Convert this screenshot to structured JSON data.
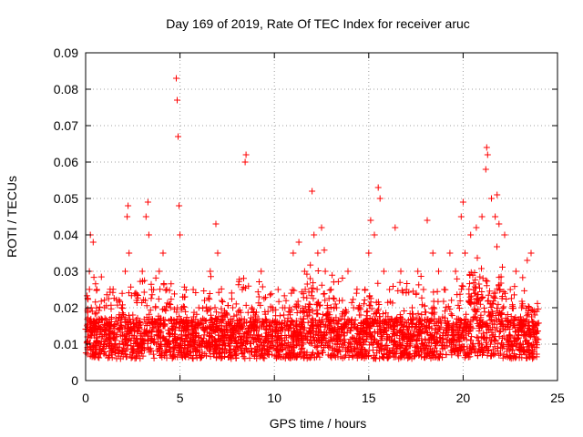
{
  "chart_data": {
    "type": "scatter",
    "title": "Day 169 of 2019, Rate Of TEC Index for receiver aruc",
    "xlabel": "GPS time / hours",
    "ylabel": "ROTI / TECUs",
    "xlim": [
      0,
      25
    ],
    "ylim": [
      0,
      0.09
    ],
    "x_ticks": [
      "0",
      "5",
      "10",
      "15",
      "20",
      "25"
    ],
    "y_ticks": [
      "0",
      "0.01",
      "0.02",
      "0.03",
      "0.04",
      "0.05",
      "0.06",
      "0.07",
      "0.08",
      "0.09"
    ],
    "grid": true,
    "marker": "+",
    "color": "#ff0000",
    "series": [
      {
        "x": [
          0.1,
          0.2,
          0.25,
          0.3,
          0.4,
          0.5,
          0.6,
          0.8,
          1.0,
          1.3,
          1.6,
          1.9,
          2.1,
          2.2,
          2.25,
          2.3,
          2.5,
          2.7,
          3.0,
          3.2,
          3.3,
          3.35,
          3.5,
          3.7,
          3.9,
          4.1,
          4.3,
          4.5,
          4.8,
          4.85,
          4.9,
          4.95,
          5.0,
          5.1,
          5.4,
          5.7,
          6.0,
          6.3,
          6.6,
          6.9,
          7.0,
          7.2,
          7.5,
          7.8,
          8.0,
          8.3,
          8.45,
          8.5,
          8.8,
          9.0,
          9.3,
          9.6,
          9.9,
          10.2,
          10.5,
          10.8,
          11.0,
          11.3,
          11.6,
          11.9,
          12.0,
          12.1,
          12.3,
          12.5,
          12.7,
          13.0,
          13.3,
          13.6,
          13.9,
          14.2,
          14.5,
          14.8,
          15.0,
          15.1,
          15.3,
          15.5,
          15.6,
          15.8,
          16.1,
          16.4,
          16.7,
          17.0,
          17.3,
          17.6,
          17.9,
          18.1,
          18.4,
          18.7,
          19.0,
          19.3,
          19.6,
          19.9,
          20.0,
          20.1,
          20.4,
          20.7,
          21.0,
          21.2,
          21.25,
          21.3,
          21.5,
          21.7,
          21.8,
          21.9,
          22.2,
          22.5,
          22.8,
          23.1,
          23.4,
          23.6,
          23.8
        ],
        "y": [
          0.012,
          0.03,
          0.04,
          0.02,
          0.038,
          0.015,
          0.025,
          0.01,
          0.02,
          0.015,
          0.012,
          0.02,
          0.03,
          0.045,
          0.048,
          0.035,
          0.018,
          0.022,
          0.03,
          0.045,
          0.049,
          0.04,
          0.025,
          0.02,
          0.03,
          0.035,
          0.025,
          0.02,
          0.083,
          0.077,
          0.067,
          0.048,
          0.04,
          0.02,
          0.015,
          0.025,
          0.02,
          0.022,
          0.03,
          0.043,
          0.035,
          0.015,
          0.018,
          0.02,
          0.015,
          0.025,
          0.06,
          0.062,
          0.02,
          0.018,
          0.03,
          0.015,
          0.02,
          0.025,
          0.018,
          0.02,
          0.035,
          0.038,
          0.03,
          0.028,
          0.052,
          0.04,
          0.035,
          0.042,
          0.03,
          0.025,
          0.02,
          0.022,
          0.03,
          0.02,
          0.018,
          0.025,
          0.035,
          0.044,
          0.04,
          0.053,
          0.05,
          0.03,
          0.025,
          0.042,
          0.03,
          0.025,
          0.02,
          0.03,
          0.025,
          0.044,
          0.035,
          0.03,
          0.025,
          0.035,
          0.03,
          0.045,
          0.049,
          0.035,
          0.04,
          0.042,
          0.045,
          0.058,
          0.064,
          0.062,
          0.05,
          0.045,
          0.051,
          0.043,
          0.04,
          0.025,
          0.03,
          0.02,
          0.033,
          0.035,
          0.018
        ]
      }
    ]
  }
}
